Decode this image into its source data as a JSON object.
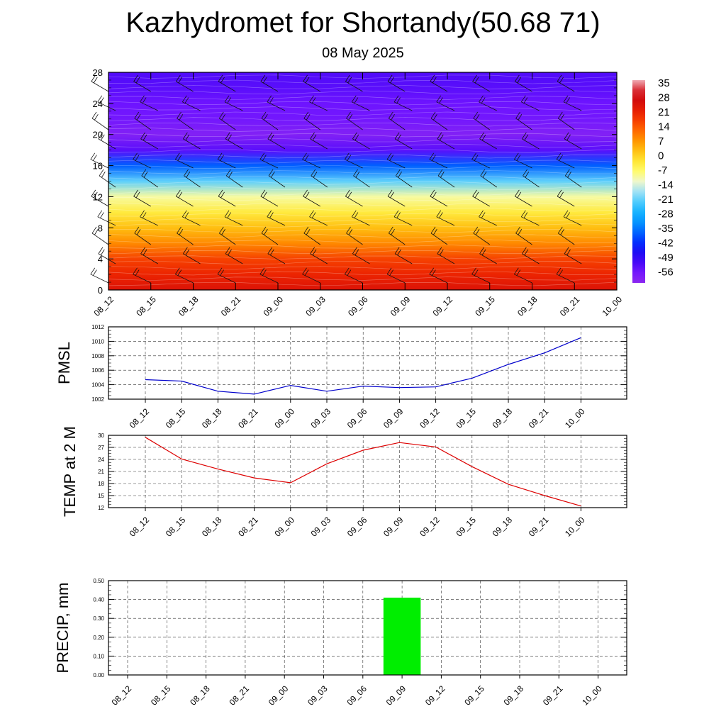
{
  "header": {
    "title": "Kazhydromet for Shortandy(50.68 71)",
    "subtitle": "08 May 2025"
  },
  "chart_data": [
    {
      "type": "heatmap",
      "title": "",
      "x_ticks": [
        "08_12",
        "08_15",
        "08_18",
        "08_21",
        "09_00",
        "09_03",
        "09_06",
        "09_09",
        "09_12",
        "09_15",
        "09_18",
        "09_21",
        "10_00"
      ],
      "y_ticks": [
        "0",
        "4",
        "8",
        "12",
        "16",
        "20",
        "24",
        "28"
      ],
      "ylim": [
        0,
        28
      ],
      "levels": [
        0,
        2,
        4,
        6,
        8,
        10,
        12,
        14,
        16,
        18,
        20,
        22,
        24,
        26,
        28
      ],
      "temperature_profile": [
        26,
        22,
        18,
        10,
        4,
        -2,
        -9,
        -20,
        -36,
        -52,
        -58,
        -55,
        -54,
        -52,
        -51
      ],
      "colorbar_labels": [
        "35",
        "28",
        "21",
        "14",
        "7",
        "0",
        "-7",
        "-14",
        "-21",
        "-28",
        "-35",
        "-42",
        "-49",
        "-56"
      ],
      "colorbar_range": [
        -60,
        38
      ],
      "wind_barbs": true
    },
    {
      "type": "line",
      "ylabel": "PMSL",
      "x_ticks": [
        "08_12",
        "08_15",
        "08_18",
        "08_21",
        "09_00",
        "09_03",
        "09_06",
        "09_09",
        "09_12",
        "09_15",
        "09_18",
        "09_21",
        "10_00"
      ],
      "y_ticks": [
        "1002",
        "1004",
        "1006",
        "1008",
        "1010",
        "1012"
      ],
      "ylim": [
        1002,
        1012
      ],
      "values": [
        1004.7,
        1004.5,
        1003.1,
        1002.7,
        1003.9,
        1003.1,
        1003.8,
        1003.6,
        1003.7,
        1004.9,
        1006.8,
        1008.4,
        1010.5
      ],
      "line_color": "#0000cc",
      "grid": true
    },
    {
      "type": "line",
      "ylabel": "TEMP at 2 M",
      "x_ticks": [
        "08_12",
        "08_15",
        "08_18",
        "08_21",
        "09_00",
        "09_03",
        "09_06",
        "09_09",
        "09_12",
        "09_15",
        "09_18",
        "09_21",
        "10_00"
      ],
      "y_ticks": [
        "12",
        "15",
        "18",
        "21",
        "24",
        "27",
        "30"
      ],
      "ylim": [
        12,
        30
      ],
      "values": [
        29.5,
        24.1,
        21.6,
        19.4,
        18.2,
        22.9,
        26.3,
        28.2,
        27.1,
        22.2,
        17.8,
        15.0,
        12.4
      ],
      "line_color": "#dd0000",
      "grid": true
    },
    {
      "type": "bar",
      "ylabel": "PRECIP, mm",
      "x_ticks": [
        "08_12",
        "08_15",
        "08_18",
        "08_21",
        "09_00",
        "09_03",
        "09_06",
        "09_09",
        "09_12",
        "09_15",
        "09_18",
        "09_21",
        "10_00"
      ],
      "y_ticks": [
        "0.00",
        "0.10",
        "0.20",
        "0.30",
        "0.40",
        "0.50"
      ],
      "ylim": [
        0,
        0.5
      ],
      "values": [
        0,
        0,
        0,
        0,
        0,
        0,
        0,
        0.41,
        0,
        0,
        0,
        0,
        0
      ],
      "bar_color": "#00ee00",
      "grid": true
    }
  ]
}
